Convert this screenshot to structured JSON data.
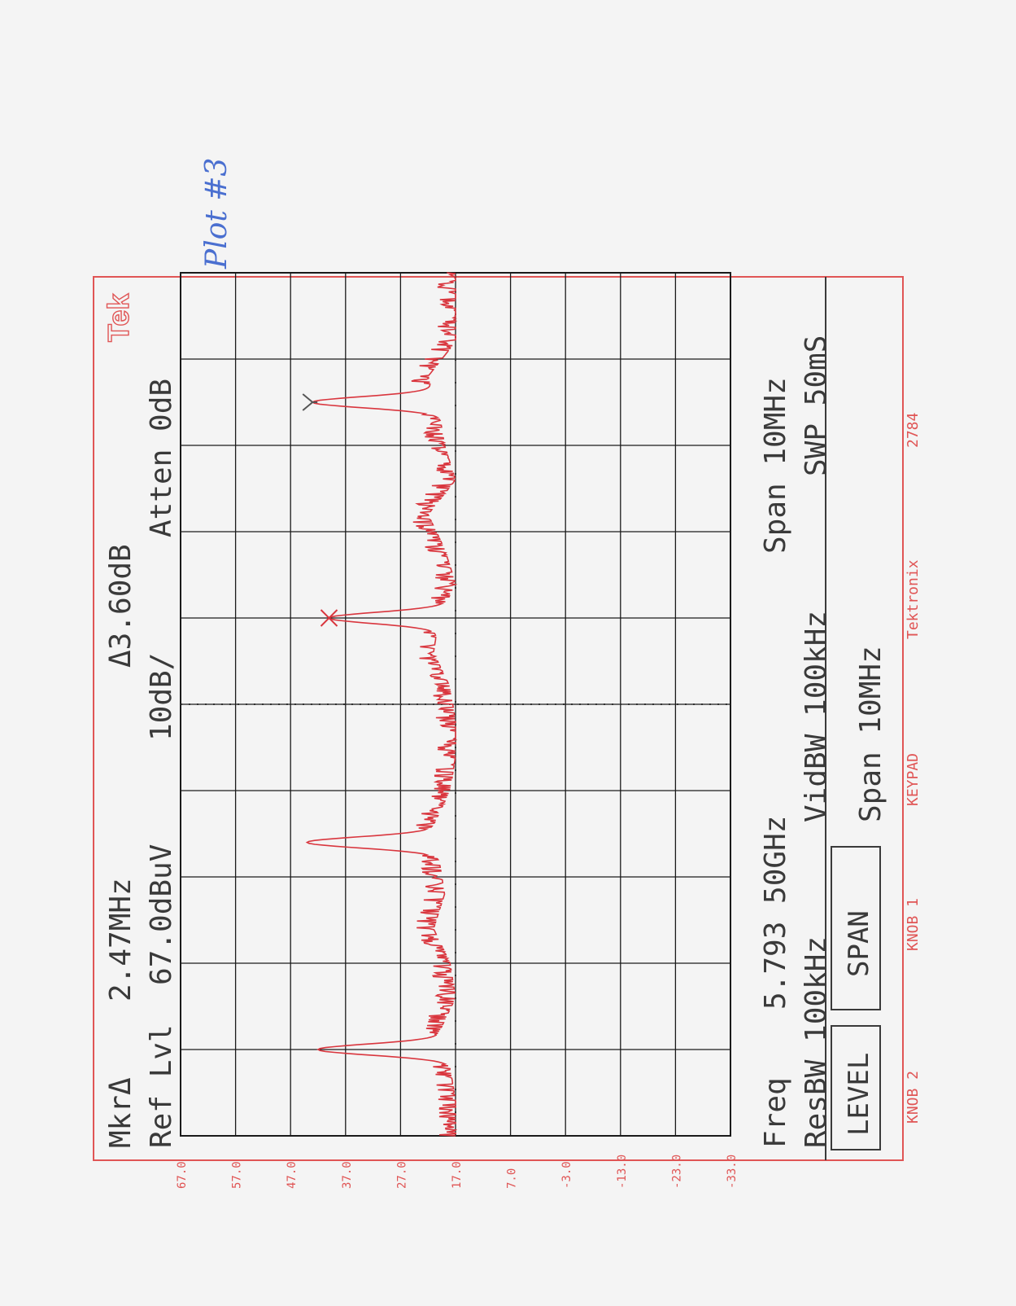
{
  "handwritten_note": "Plot #3",
  "brand_logo": "Tek",
  "readouts": {
    "marker_label": "MkrΔ",
    "marker_freq": "2.47MHz",
    "delta": "Δ3.60dB",
    "ref_label": "Ref Lvl",
    "ref_level": "67.0dBuV",
    "scale": "10dB/",
    "atten": "Atten 0dB",
    "freq_label": "Freq",
    "freq_value": "5.793 50GHz",
    "span": "Span 10MHz",
    "resbw": "ResBW 100kHz",
    "vidbw": "VidBW 100kHz",
    "swp": "SWP 50mS",
    "span_menu": "Span 10MHz"
  },
  "buttons": {
    "level": "LEVEL",
    "span": "SPAN"
  },
  "footer": {
    "knob2": "KNOB 2",
    "knob1": "KNOB 1",
    "keypad": "KEYPAD",
    "brand": "Tektronix",
    "model": "2784"
  },
  "colors": {
    "trace": "#d9363e",
    "grid": "#1a1a1a",
    "frame": "#e05555",
    "ink": "#3a3a3a",
    "note": "#4a6fd0"
  },
  "chart_data": {
    "type": "line",
    "x_unit": "MHz",
    "y_unit": "dBuV",
    "ylim": [
      -33.0,
      67.0
    ],
    "xlim": [
      -5.0,
      5.0
    ],
    "y_ticks": [
      "67.0",
      "57.0",
      "47.0",
      "37.0",
      "27.0",
      "17.0",
      "7.0",
      "-3.0",
      "-13.0",
      "-23.0",
      "-33.0"
    ],
    "grid": true,
    "noise_floor": [
      [
        -5.0,
        17
      ],
      [
        -4.6,
        17
      ],
      [
        -4.2,
        18
      ],
      [
        -3.8,
        20
      ],
      [
        -3.4,
        17
      ],
      [
        -3.0,
        18
      ],
      [
        -2.6,
        21
      ],
      [
        -2.2,
        19
      ],
      [
        -1.8,
        20
      ],
      [
        -1.4,
        21
      ],
      [
        -1.0,
        18
      ],
      [
        -0.6,
        17
      ],
      [
        -0.2,
        17
      ],
      [
        0.2,
        18
      ],
      [
        0.6,
        21
      ],
      [
        1.0,
        20
      ],
      [
        1.4,
        17
      ],
      [
        1.8,
        19
      ],
      [
        2.2,
        22
      ],
      [
        2.6,
        17
      ],
      [
        3.0,
        19
      ],
      [
        3.4,
        20
      ],
      [
        3.8,
        22
      ],
      [
        4.2,
        17
      ],
      [
        4.6,
        17
      ],
      [
        5.0,
        17
      ]
    ],
    "peaks": [
      {
        "x": -4.0,
        "y": 42,
        "marker": null
      },
      {
        "x": -1.6,
        "y": 44,
        "marker": null
      },
      {
        "x": 1.0,
        "y": 40,
        "marker": "X"
      },
      {
        "x": 3.5,
        "y": 43,
        "marker": "Y"
      }
    ]
  }
}
